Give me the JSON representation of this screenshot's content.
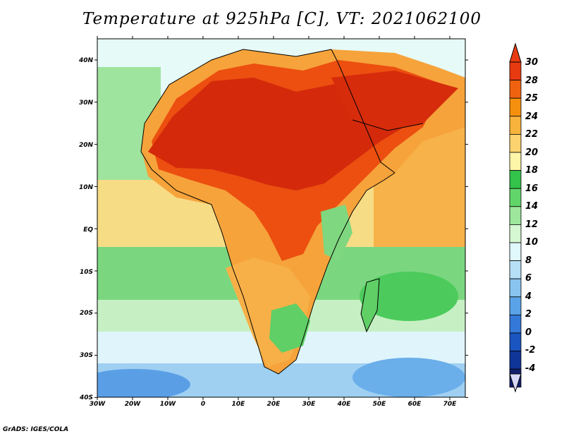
{
  "title": "Temperature at 925hPa [C], VT: 2021062100",
  "credit": "GrADS: IGES/COLA",
  "lat_labels": [
    "40N",
    "30N",
    "20N",
    "10N",
    "EQ",
    "10S",
    "20S",
    "30S",
    "40S"
  ],
  "lon_labels": [
    "30W",
    "20W",
    "10W",
    "0",
    "10E",
    "20E",
    "30E",
    "40E",
    "50E",
    "60E",
    "70E"
  ],
  "colorbar": {
    "labels": [
      "30",
      "28",
      "25",
      "24",
      "22",
      "20",
      "18",
      "16",
      "14",
      "12",
      "10",
      "8",
      "6",
      "4",
      "2",
      "0",
      "-2",
      "-4"
    ],
    "colors": [
      "#e83a10",
      "#f0620f",
      "#f5900f",
      "#f7b33c",
      "#fcd36f",
      "#fdf5a8",
      "#33c24a",
      "#62d56a",
      "#9de69b",
      "#d5f7d2",
      "#e0f7fb",
      "#b7e0f7",
      "#89c4f0",
      "#5aa3e8",
      "#3579d8",
      "#1a55c0",
      "#0f3598",
      "#121f6e"
    ]
  },
  "colors": {
    "ocean_north": "#e8fbf9",
    "ocean_tropical": "#f8e79a",
    "ocean_green": "#7ad97e",
    "ocean_south": "#b5dcf5",
    "hot_core": "#d62a0b",
    "hot": "#ee5210",
    "warm": "#f7a23a",
    "mild": "#fbcf6a",
    "cool_land": "#5fcf66"
  }
}
